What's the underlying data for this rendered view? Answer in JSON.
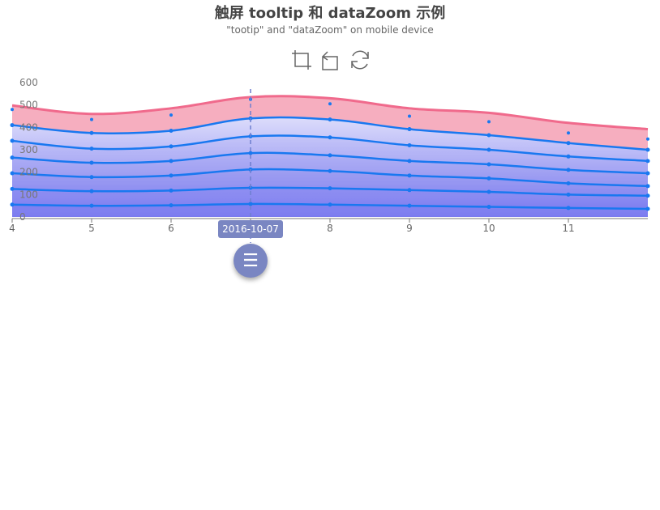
{
  "title": "触屏 tooltip 和 dataZoom 示例",
  "subtitle": "\"tootip\" and \"dataZoom\" on mobile device",
  "toolbox": {
    "icons": [
      "data-zoom-icon",
      "data-zoom-reset-icon",
      "restore-icon"
    ]
  },
  "tooltip": {
    "axis_value": "2016-10-07",
    "x": 7
  },
  "menu_button": {
    "icon": "menu-icon",
    "glyph": "☰"
  },
  "colors": {
    "line": "#1978f0",
    "top_line": "#f06a8c",
    "top_area": "#f5a5b8",
    "area_light": "#dcdcfb",
    "area_dark": "#7b7bef",
    "axis": "#777777",
    "pointer": "#6e7fcf"
  },
  "chart_data": {
    "type": "line",
    "x": [
      4,
      5,
      6,
      7,
      8,
      9,
      10,
      11,
      12
    ],
    "x_tick_labels": [
      "4",
      "5",
      "6",
      "7",
      "8",
      "9",
      "10",
      "11"
    ],
    "xlim": [
      4,
      12
    ],
    "ylim": [
      0,
      600
    ],
    "y_ticks": [
      0,
      100,
      200,
      300,
      400,
      500,
      600
    ],
    "smooth": true,
    "stacked_area": true,
    "series": [
      {
        "values": [
          55,
          50,
          52,
          58,
          55,
          50,
          45,
          40,
          36
        ]
      },
      {
        "values": [
          125,
          115,
          118,
          130,
          128,
          120,
          112,
          100,
          95
        ]
      },
      {
        "values": [
          195,
          178,
          185,
          212,
          205,
          185,
          172,
          150,
          138
        ]
      },
      {
        "values": [
          265,
          242,
          250,
          285,
          275,
          250,
          235,
          210,
          195
        ]
      },
      {
        "values": [
          340,
          305,
          315,
          360,
          355,
          320,
          300,
          270,
          250
        ]
      },
      {
        "values": [
          410,
          375,
          385,
          440,
          435,
          392,
          365,
          330,
          300
        ]
      },
      {
        "values": [
          498,
          460,
          485,
          535,
          530,
          485,
          465,
          420,
          392
        ]
      }
    ],
    "scatter_points": [
      {
        "x": 4,
        "y": 480
      },
      {
        "x": 5,
        "y": 435
      },
      {
        "x": 6,
        "y": 455
      },
      {
        "x": 7,
        "y": 525
      },
      {
        "x": 8,
        "y": 505
      },
      {
        "x": 9,
        "y": 450
      },
      {
        "x": 10,
        "y": 425
      },
      {
        "x": 11,
        "y": 375
      },
      {
        "x": 12,
        "y": 348
      }
    ]
  }
}
